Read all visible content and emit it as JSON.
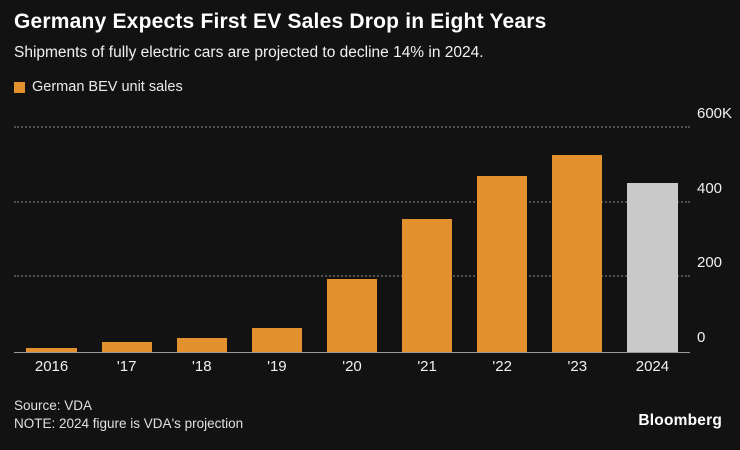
{
  "header": {
    "title": "Germany Expects First EV Sales Drop in Eight Years",
    "subtitle": "Shipments of fully electric cars are projected to decline 14% in 2024."
  },
  "legend": {
    "label": "German BEV unit sales",
    "color": "#E2912E"
  },
  "chart_data": {
    "type": "bar",
    "title": "Germany Expects First EV Sales Drop in Eight Years",
    "subtitle": "Shipments of fully electric cars are projected to decline 14% in 2024.",
    "series_name": "German BEV unit sales",
    "categories": [
      "2016",
      "'17",
      "'18",
      "'19",
      "'20",
      "'21",
      "'22",
      "'23",
      "2024"
    ],
    "values": [
      11,
      28,
      38,
      65,
      195,
      356,
      472,
      528,
      452
    ],
    "unit": "thousands of units",
    "bar_colors": [
      "#E2912E",
      "#E2912E",
      "#E2912E",
      "#E2912E",
      "#E2912E",
      "#E2912E",
      "#E2912E",
      "#E2912E",
      "#C9C9C9"
    ],
    "highlight_note": "2024 bar is gray because it is a projection",
    "ylim": [
      0,
      600
    ],
    "yticks": [
      0,
      200,
      400,
      600
    ],
    "ytick_labels": [
      "0",
      "200",
      "400",
      "600K"
    ],
    "xlabel": "",
    "ylabel": "",
    "grid": "dotted horizontal",
    "legend_position": "top-left",
    "axis_side": "right"
  },
  "footer": {
    "source": "Source: VDA",
    "note": "NOTE: 2024 figure is VDA's projection",
    "brand": "Bloomberg"
  }
}
